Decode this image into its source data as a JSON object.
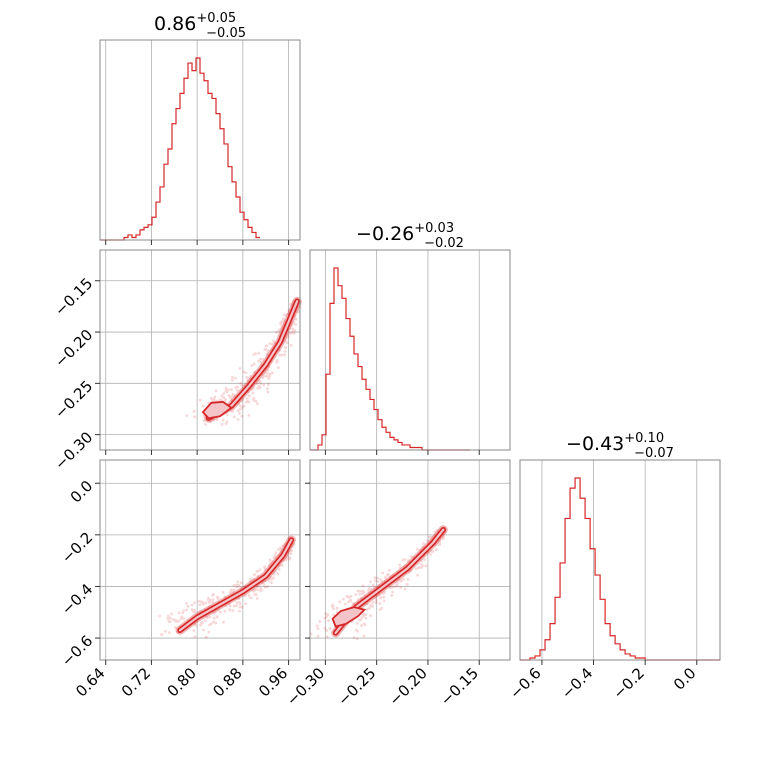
{
  "chart_data": {
    "type": "corner",
    "color": "#d62728",
    "grid": true,
    "parameters": [
      {
        "summary": {
          "median": "0.86",
          "plus": "+0.05",
          "minus": "−0.05"
        },
        "range": [
          0.63,
          0.98
        ],
        "ticks": [
          0.64,
          0.72,
          0.8,
          0.88,
          0.96
        ],
        "tick_labels": [
          "0.64",
          "0.72",
          "0.80",
          "0.88",
          "0.96"
        ]
      },
      {
        "summary": {
          "median": "−0.26",
          "plus": "+0.03",
          "minus": "−0.02"
        },
        "range": [
          -0.315,
          -0.12
        ],
        "ticks": [
          -0.3,
          -0.25,
          -0.2,
          -0.15
        ],
        "tick_labels": [
          "−0.30",
          "−0.25",
          "−0.20",
          "−0.15"
        ]
      },
      {
        "summary": {
          "median": "−0.43",
          "plus": "+0.10",
          "minus": "−0.07"
        },
        "range": [
          -0.685,
          0.09
        ],
        "ticks": [
          -0.6,
          -0.4,
          -0.2,
          0.0
        ],
        "tick_labels": [
          "−0.6",
          "−0.4",
          "−0.2",
          "0.0"
        ]
      }
    ],
    "histograms": [
      {
        "bin_start": 0.63,
        "bin_width": 0.007,
        "counts": [
          0,
          0,
          0,
          0,
          0,
          0,
          1,
          2,
          1,
          2,
          4,
          5,
          6,
          9,
          15,
          21,
          30,
          36,
          46,
          52,
          58,
          64,
          70,
          67,
          72,
          66,
          63,
          58,
          56,
          50,
          44,
          38,
          29,
          23,
          17,
          11,
          8,
          5,
          3,
          1
        ]
      },
      {
        "bin_start": -0.315,
        "bin_width": 0.0039,
        "counts": [
          0,
          0,
          2,
          6,
          30,
          58,
          72,
          65,
          60,
          52,
          45,
          38,
          33,
          28,
          24,
          20,
          16,
          12,
          9,
          7,
          5,
          4,
          3,
          2,
          2,
          1,
          1,
          1,
          0,
          0,
          0,
          0,
          0,
          0,
          0,
          0,
          0,
          0,
          0,
          0
        ]
      },
      {
        "bin_start": -0.685,
        "bin_width": 0.0194,
        "counts": [
          0,
          0,
          1,
          2,
          5,
          10,
          18,
          31,
          48,
          70,
          85,
          90,
          80,
          70,
          55,
          42,
          30,
          18,
          12,
          8,
          5,
          3,
          2,
          1,
          1,
          0,
          0,
          0,
          0,
          0,
          0,
          0,
          0,
          0,
          0,
          0,
          0,
          0,
          0,
          0
        ]
      }
    ],
    "pairs": [
      {
        "x": 0,
        "y": 1,
        "ridge": [
          [
            0.82,
            -0.284
          ],
          [
            0.86,
            -0.272
          ],
          [
            0.89,
            -0.253
          ],
          [
            0.92,
            -0.232
          ],
          [
            0.945,
            -0.21
          ],
          [
            0.96,
            -0.19
          ],
          [
            0.975,
            -0.17
          ]
        ],
        "core": [
          [
            0.81,
            -0.278
          ],
          [
            0.825,
            -0.269
          ],
          [
            0.845,
            -0.268
          ],
          [
            0.86,
            -0.274
          ],
          [
            0.84,
            -0.282
          ],
          [
            0.82,
            -0.284
          ]
        ]
      },
      {
        "x": 0,
        "y": 2,
        "ridge": [
          [
            0.77,
            -0.57
          ],
          [
            0.8,
            -0.52
          ],
          [
            0.84,
            -0.47
          ],
          [
            0.88,
            -0.42
          ],
          [
            0.92,
            -0.36
          ],
          [
            0.95,
            -0.28
          ],
          [
            0.965,
            -0.22
          ]
        ],
        "core": []
      },
      {
        "x": 1,
        "y": 2,
        "ridge": [
          [
            -0.29,
            -0.58
          ],
          [
            -0.27,
            -0.48
          ],
          [
            -0.25,
            -0.42
          ],
          [
            -0.22,
            -0.33
          ],
          [
            -0.195,
            -0.23
          ],
          [
            -0.185,
            -0.18
          ]
        ],
        "core": [
          [
            -0.29,
            -0.555
          ],
          [
            -0.293,
            -0.525
          ],
          [
            -0.285,
            -0.495
          ],
          [
            -0.272,
            -0.48
          ],
          [
            -0.262,
            -0.49
          ],
          [
            -0.268,
            -0.515
          ],
          [
            -0.28,
            -0.545
          ],
          [
            -0.29,
            -0.555
          ]
        ]
      }
    ]
  }
}
